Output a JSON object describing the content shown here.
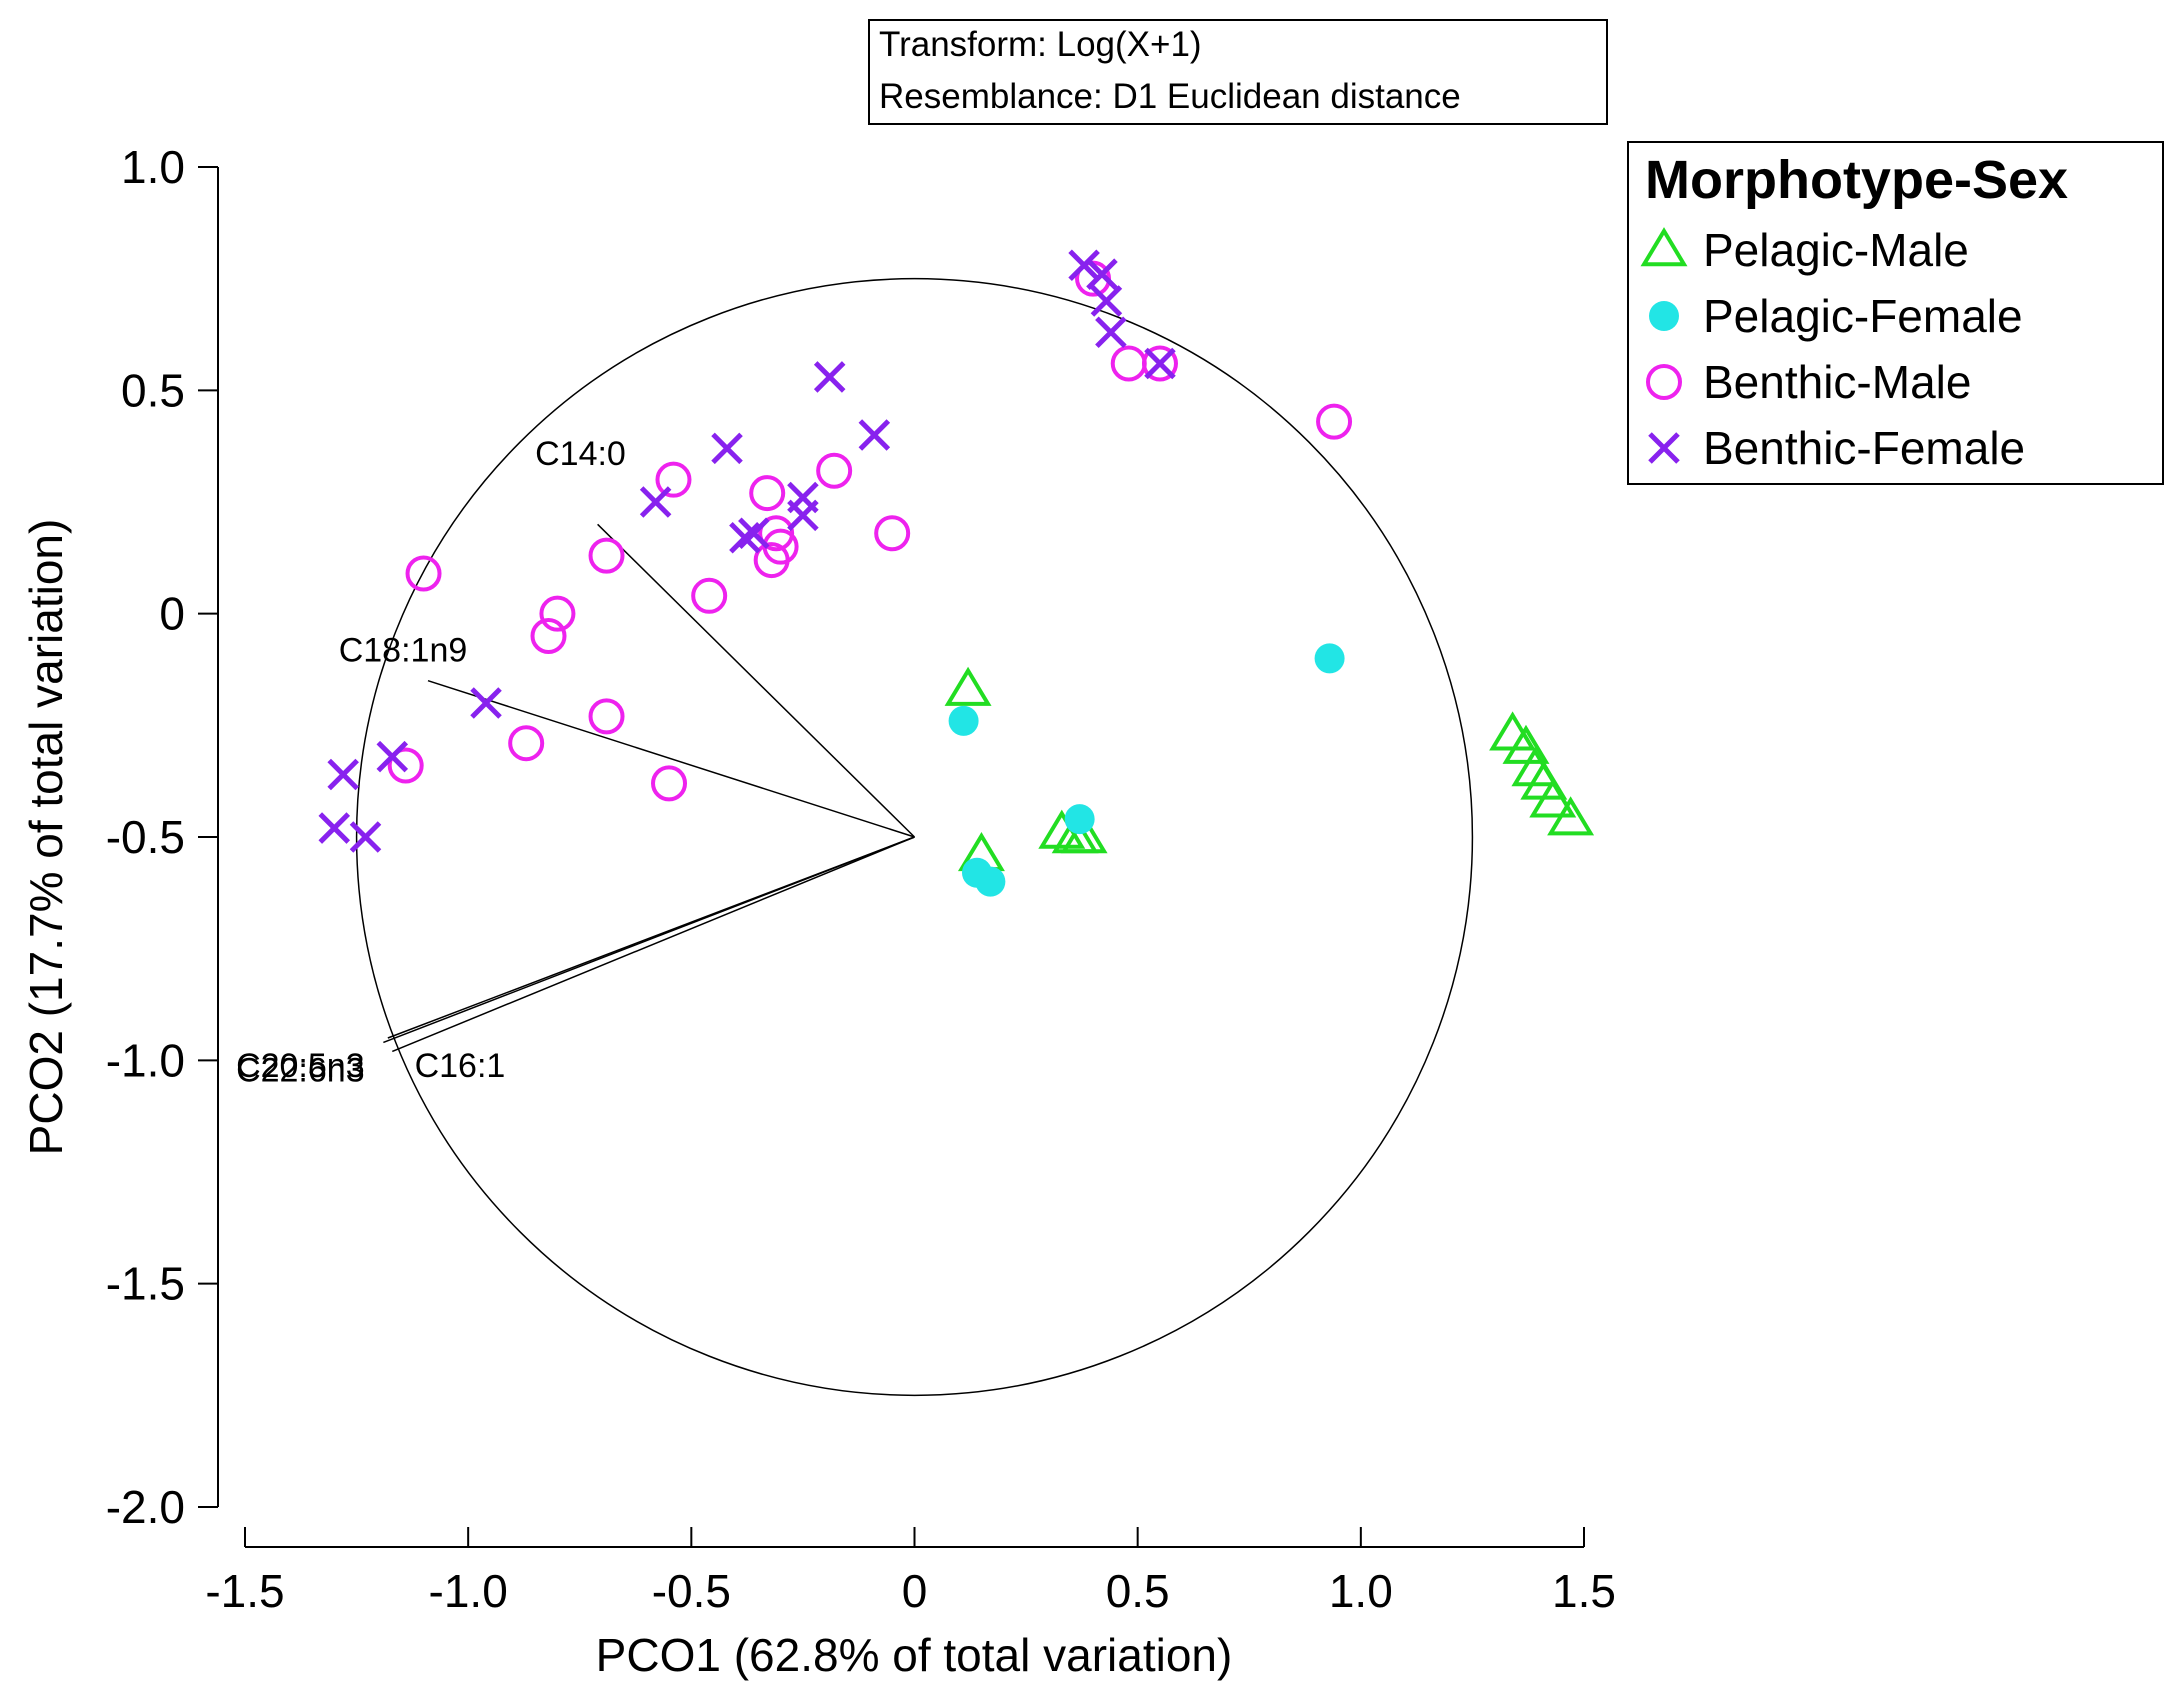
{
  "chart_data": {
    "type": "scatter",
    "title": "",
    "xlabel": "PCO1 (62.8% of total variation)",
    "ylabel": "PCO2 (17.7% of total variation)",
    "xlim": [
      -1.5,
      1.5
    ],
    "ylim": [
      -2.0,
      1.0
    ],
    "x_ticks": [
      -1.5,
      -1.0,
      -0.5,
      0,
      0.5,
      1.0,
      1.5
    ],
    "x_tick_labels": [
      "-1.5",
      "-1.0",
      "-0.5",
      "0",
      "0.5",
      "1.0",
      "1.5"
    ],
    "y_ticks": [
      1.0,
      0.5,
      0,
      -0.5,
      -1.0,
      -1.5,
      -2.0
    ],
    "y_tick_labels": [
      "1.0",
      "0.5",
      "0",
      "-0.5",
      "-1.0",
      "-1.5",
      "-2.0"
    ],
    "grid": false,
    "info_box": {
      "line1": "Transform: Log(X+1)",
      "line2": "Resemblance: D1 Euclidean distance"
    },
    "correlation_circle": {
      "center": [
        0,
        -0.5
      ],
      "radius": 1.25
    },
    "vectors": [
      {
        "label": "C14:0",
        "end": [
          -0.71,
          0.2
        ],
        "label_at": [
          -0.85,
          0.36
        ]
      },
      {
        "label": "C18:1n9",
        "end": [
          -1.09,
          -0.15
        ],
        "label_at": [
          -1.29,
          -0.08
        ]
      },
      {
        "label": "C20:5n3",
        "end": [
          -1.18,
          -0.95
        ],
        "label_at": [
          -1.52,
          -1.01
        ]
      },
      {
        "label": "C22:6n3",
        "end": [
          -1.19,
          -0.96
        ],
        "label_at": [
          -1.52,
          -1.02
        ]
      },
      {
        "label": "C16:1",
        "end": [
          -1.17,
          -0.98
        ],
        "label_at": [
          -1.12,
          -1.01
        ]
      }
    ],
    "legend": {
      "title": "Morphotype-Sex",
      "position": "top-right"
    },
    "series": [
      {
        "name": "Pelagic-Male",
        "marker": "triangle",
        "color": "#22dd22",
        "points": [
          [
            0.12,
            -0.17
          ],
          [
            0.15,
            -0.54
          ],
          [
            0.33,
            -0.49
          ],
          [
            0.36,
            -0.5
          ],
          [
            0.38,
            -0.5
          ],
          [
            1.34,
            -0.27
          ],
          [
            1.37,
            -0.3
          ],
          [
            1.39,
            -0.35
          ],
          [
            1.41,
            -0.38
          ],
          [
            1.43,
            -0.42
          ],
          [
            1.47,
            -0.46
          ]
        ]
      },
      {
        "name": "Pelagic-Female",
        "marker": "filled-circle",
        "color": "#22e5e5",
        "points": [
          [
            0.11,
            -0.24
          ],
          [
            0.14,
            -0.58
          ],
          [
            0.17,
            -0.6
          ],
          [
            0.37,
            -0.46
          ],
          [
            0.93,
            -0.1
          ]
        ]
      },
      {
        "name": "Benthic-Male",
        "marker": "open-circle",
        "color": "#ee22ee",
        "points": [
          [
            -1.1,
            0.09
          ],
          [
            -1.14,
            -0.34
          ],
          [
            -0.8,
            0.0
          ],
          [
            -0.82,
            -0.05
          ],
          [
            -0.87,
            -0.29
          ],
          [
            -0.69,
            0.13
          ],
          [
            -0.69,
            -0.23
          ],
          [
            -0.54,
            0.3
          ],
          [
            -0.55,
            -0.38
          ],
          [
            -0.46,
            0.04
          ],
          [
            -0.33,
            0.27
          ],
          [
            -0.32,
            0.12
          ],
          [
            -0.31,
            0.18
          ],
          [
            -0.3,
            0.15
          ],
          [
            -0.18,
            0.32
          ],
          [
            -0.05,
            0.18
          ],
          [
            0.4,
            0.75
          ],
          [
            0.48,
            0.56
          ],
          [
            0.55,
            0.56
          ],
          [
            0.94,
            0.43
          ]
        ]
      },
      {
        "name": "Benthic-Female",
        "marker": "x",
        "color": "#8822ee",
        "points": [
          [
            -1.3,
            -0.48
          ],
          [
            -1.28,
            -0.36
          ],
          [
            -1.23,
            -0.5
          ],
          [
            -1.17,
            -0.32
          ],
          [
            -0.96,
            -0.2
          ],
          [
            -0.58,
            0.25
          ],
          [
            -0.42,
            0.37
          ],
          [
            -0.38,
            0.17
          ],
          [
            -0.36,
            0.18
          ],
          [
            -0.25,
            0.22
          ],
          [
            -0.25,
            0.26
          ],
          [
            -0.19,
            0.53
          ],
          [
            -0.09,
            0.4
          ],
          [
            0.38,
            0.78
          ],
          [
            0.42,
            0.76
          ],
          [
            0.43,
            0.7
          ],
          [
            0.44,
            0.63
          ],
          [
            0.55,
            0.56
          ]
        ]
      }
    ]
  }
}
